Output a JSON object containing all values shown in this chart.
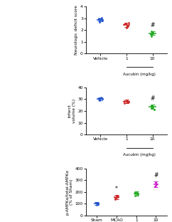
{
  "panel_B": {
    "ylabel": "Neurologic deficit score",
    "groups": [
      "Vehicle",
      "1",
      "10"
    ],
    "colors": [
      "#2255cc",
      "#cc2222",
      "#22aa22"
    ],
    "means": [
      2.9,
      2.45,
      1.75
    ],
    "sems": [
      0.12,
      0.18,
      0.15
    ],
    "scatter_data": [
      [
        2.7,
        2.8,
        2.9,
        3.0,
        3.0,
        2.85,
        2.95,
        3.05
      ],
      [
        2.2,
        2.3,
        2.5,
        2.6,
        2.4,
        2.55
      ],
      [
        1.5,
        1.6,
        1.7,
        1.75,
        1.85,
        1.9,
        1.8,
        1.65
      ]
    ],
    "ylim": [
      0,
      4
    ],
    "yticks": [
      0,
      1,
      2,
      3,
      4
    ],
    "hash_group": 2,
    "aucubin_groups": [
      1,
      2
    ]
  },
  "panel_E": {
    "ylabel": "Infarct\nvolume (%)",
    "groups": [
      "Vehicle",
      "1",
      "10"
    ],
    "colors": [
      "#2255cc",
      "#cc2222",
      "#22aa22"
    ],
    "means": [
      30.5,
      28.0,
      23.5
    ],
    "sems": [
      1.2,
      1.5,
      1.8
    ],
    "scatter_data": [
      [
        29.0,
        30.0,
        31.0,
        31.5,
        30.5,
        30.8
      ],
      [
        26.5,
        27.5,
        28.5,
        29.0,
        28.2,
        27.8
      ],
      [
        21.5,
        22.5,
        23.5,
        24.0,
        25.0,
        23.0
      ]
    ],
    "ylim": [
      0,
      40
    ],
    "yticks": [
      0,
      10,
      20,
      30,
      40
    ],
    "hash_group": 2,
    "aucubin_groups": [
      1,
      2
    ]
  },
  "panel_F": {
    "ylabel": "p-AMPKα/total-AMPKα\n(% of Sham)",
    "groups": [
      "Sham",
      "MCAO",
      "1",
      "10"
    ],
    "colors": [
      "#2255cc",
      "#cc2222",
      "#22aa22",
      "#cc22cc"
    ],
    "means": [
      100,
      155,
      185,
      265
    ],
    "sems": [
      10,
      18,
      20,
      22
    ],
    "scatter_data": [
      [
        90,
        95,
        100,
        105,
        108
      ],
      [
        140,
        150,
        160,
        165,
        158
      ],
      [
        170,
        180,
        190,
        195,
        188
      ],
      [
        245,
        255,
        265,
        275,
        280
      ]
    ],
    "ylim": [
      0,
      400
    ],
    "yticks": [
      0,
      100,
      200,
      300,
      400
    ],
    "hash_group": 3,
    "star_group": 1,
    "aucubin_groups": [
      2,
      3
    ]
  }
}
